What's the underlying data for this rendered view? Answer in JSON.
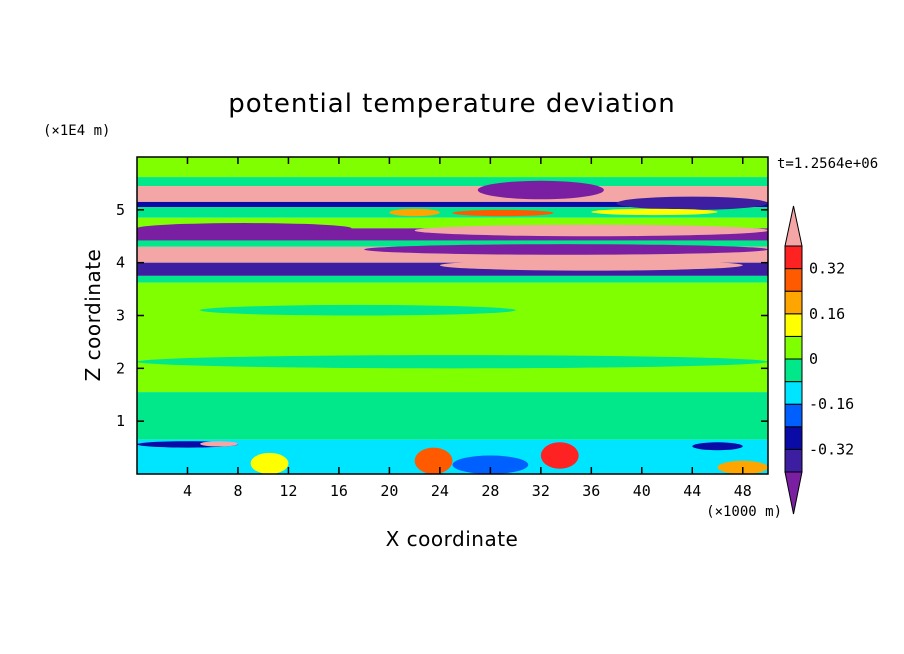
{
  "chart_data": {
    "type": "heatmap",
    "title": "potential temperature deviation",
    "xlabel": "X coordinate",
    "ylabel": "Z coordinate",
    "x_unit": "(×1000 m)",
    "y_unit": "(×1E4 m)",
    "time_label": "t=1.2564e+06",
    "xlim": [
      0,
      50
    ],
    "ylim": [
      0,
      6
    ],
    "x_ticks": [
      4,
      8,
      12,
      16,
      20,
      24,
      28,
      32,
      36,
      40,
      44,
      48
    ],
    "y_ticks": [
      1,
      2,
      3,
      4,
      5
    ],
    "colorbar": {
      "levels": [
        -0.4,
        -0.32,
        -0.24,
        -0.16,
        -0.08,
        0,
        0.08,
        0.16,
        0.24,
        0.32,
        0.4
      ],
      "labels": [
        "-0.32",
        "-0.16",
        "0",
        "0.16",
        "0.32"
      ],
      "label_values": [
        -0.32,
        -0.16,
        0,
        0.16,
        0.32
      ],
      "colors": [
        "#7b1fa2",
        "#3d1ea0",
        "#0a0aa6",
        "#0060ff",
        "#00e5ff",
        "#00e88a",
        "#80ff00",
        "#ffff00",
        "#ffa500",
        "#ff5a00",
        "#ff2222",
        "#f4a6a6"
      ],
      "extend": "both"
    },
    "bands": [
      {
        "y0": 5.62,
        "y1": 6.0,
        "color": "#80ff00"
      },
      {
        "y0": 5.45,
        "y1": 5.62,
        "color": "#00e88a"
      },
      {
        "y0": 5.15,
        "y1": 5.45,
        "color": "#f4a6a6"
      },
      {
        "y0": 5.05,
        "y1": 5.15,
        "color": "#0a0aa6"
      },
      {
        "y0": 4.85,
        "y1": 5.05,
        "color": "#00e88a"
      },
      {
        "y0": 4.65,
        "y1": 4.85,
        "color": "#80ff00"
      },
      {
        "y0": 4.42,
        "y1": 4.65,
        "color": "#7b1fa2"
      },
      {
        "y0": 4.3,
        "y1": 4.42,
        "color": "#00e88a"
      },
      {
        "y0": 4.0,
        "y1": 4.3,
        "color": "#f4a6a6"
      },
      {
        "y0": 3.75,
        "y1": 4.0,
        "color": "#3d1ea0"
      },
      {
        "y0": 3.62,
        "y1": 3.75,
        "color": "#00e88a"
      },
      {
        "y0": 1.55,
        "y1": 3.62,
        "color": "#80ff00"
      },
      {
        "y0": 0.65,
        "y1": 1.55,
        "color": "#00e88a"
      },
      {
        "y0": 0.0,
        "y1": 0.65,
        "color": "#00e5ff"
      }
    ],
    "patches": [
      {
        "x0": 27,
        "x1": 37,
        "y0": 5.2,
        "y1": 5.55,
        "color": "#7b1fa2"
      },
      {
        "x0": 38,
        "x1": 50,
        "y0": 5.0,
        "y1": 5.25,
        "color": "#3d1ea0"
      },
      {
        "x0": 22,
        "x1": 50,
        "y0": 4.5,
        "y1": 4.72,
        "color": "#f4a6a6"
      },
      {
        "x0": 0,
        "x1": 17,
        "y0": 4.55,
        "y1": 4.75,
        "color": "#7b1fa2"
      },
      {
        "x0": 18,
        "x1": 50,
        "y0": 4.15,
        "y1": 4.35,
        "color": "#7b1fa2"
      },
      {
        "x0": 24,
        "x1": 48,
        "y0": 3.85,
        "y1": 4.05,
        "color": "#f4a6a6"
      },
      {
        "x0": 20,
        "x1": 24,
        "y0": 4.88,
        "y1": 5.02,
        "color": "#ffa500"
      },
      {
        "x0": 25,
        "x1": 33,
        "y0": 4.88,
        "y1": 5.0,
        "color": "#ff5a00"
      },
      {
        "x0": 36,
        "x1": 46,
        "y0": 4.9,
        "y1": 5.02,
        "color": "#ffff00"
      },
      {
        "x0": 0,
        "x1": 50,
        "y0": 2.0,
        "y1": 2.25,
        "color": "#00e88a"
      },
      {
        "x0": 5,
        "x1": 30,
        "y0": 3.0,
        "y1": 3.2,
        "color": "#00e88a"
      },
      {
        "x0": 0,
        "x1": 8,
        "y0": 0.5,
        "y1": 0.62,
        "color": "#0a0aa6"
      },
      {
        "x0": 5,
        "x1": 8,
        "y0": 0.52,
        "y1": 0.62,
        "color": "#f4a6a6"
      },
      {
        "x0": 9,
        "x1": 12,
        "y0": 0.0,
        "y1": 0.4,
        "color": "#ffff00"
      },
      {
        "x0": 22,
        "x1": 25,
        "y0": 0.0,
        "y1": 0.5,
        "color": "#ff5a00"
      },
      {
        "x0": 25,
        "x1": 31,
        "y0": 0.0,
        "y1": 0.35,
        "color": "#0060ff"
      },
      {
        "x0": 32,
        "x1": 35,
        "y0": 0.1,
        "y1": 0.6,
        "color": "#ff2222"
      },
      {
        "x0": 44,
        "x1": 48,
        "y0": 0.45,
        "y1": 0.6,
        "color": "#0a0aa6"
      },
      {
        "x0": 46,
        "x1": 50,
        "y0": 0.0,
        "y1": 0.25,
        "color": "#ffa500"
      }
    ]
  }
}
